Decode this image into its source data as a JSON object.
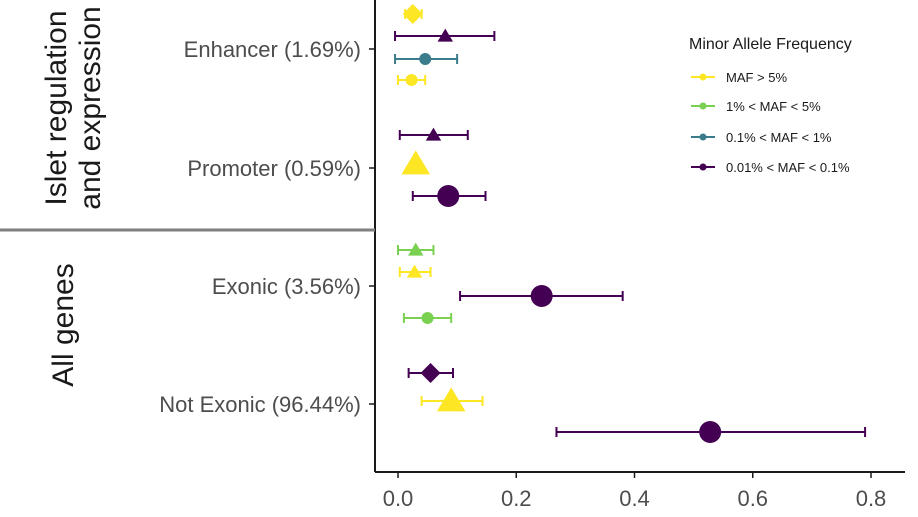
{
  "chart_data": {
    "type": "scatter",
    "subtype": "forest-plot",
    "xlim": [
      -0.04,
      0.83
    ],
    "x_ticks": [
      "0.0",
      "0.2",
      "0.4",
      "0.6",
      "0.8"
    ],
    "x_tick_values": [
      0.0,
      0.2,
      0.4,
      0.6,
      0.8
    ],
    "grid": false,
    "legend": {
      "title": "Minor Allele Frequency",
      "placement": "right",
      "items": [
        {
          "label": "MAF > 5%",
          "color": "#fde725"
        },
        {
          "label": "1% < MAF < 5%",
          "color": "#7ad151"
        },
        {
          "label": "0.1% < MAF < 1%",
          "color": "#3b7c8c"
        },
        {
          "label": "0.01% < MAF < 0.1%",
          "color": "#440154"
        }
      ]
    },
    "groups": [
      {
        "label": "Islet regulation and expression",
        "label_lines": [
          "Islet regulation",
          "and expression"
        ],
        "categories": [
          "Enhancer (1.69%)",
          "Promoter (0.59%)"
        ]
      },
      {
        "label": "All genes",
        "label_lines": [
          "All genes"
        ],
        "categories": [
          "Exonic (3.56%)",
          "Not Exonic (96.44%)"
        ]
      }
    ],
    "categories": [
      "Enhancer (1.69%)",
      "Promoter (0.59%)",
      "Exonic (3.56%)",
      "Not Exonic (96.44%)"
    ],
    "points": [
      {
        "category": "Enhancer (1.69%)",
        "maf": "MAF > 5%",
        "shape": "diamond",
        "size": "medium",
        "x": 0.025,
        "lo": 0.012,
        "hi": 0.04
      },
      {
        "category": "Enhancer (1.69%)",
        "maf": "0.01% < MAF < 0.1%",
        "shape": "triangle",
        "size": "small",
        "x": 0.08,
        "lo": -0.005,
        "hi": 0.163
      },
      {
        "category": "Enhancer (1.69%)",
        "maf": "0.1% < MAF < 1%",
        "shape": "circle",
        "size": "small",
        "x": 0.046,
        "lo": -0.005,
        "hi": 0.1
      },
      {
        "category": "Enhancer (1.69%)",
        "maf": "MAF > 5%",
        "shape": "circle",
        "size": "small",
        "x": 0.023,
        "lo": 0.0,
        "hi": 0.046
      },
      {
        "category": "Promoter (0.59%)",
        "maf": "0.01% < MAF < 0.1%",
        "shape": "triangle",
        "size": "small",
        "x": 0.06,
        "lo": 0.003,
        "hi": 0.118
      },
      {
        "category": "Promoter (0.59%)",
        "maf": "MAF > 5%",
        "shape": "triangle",
        "size": "large",
        "x": 0.03,
        "lo": 0.03,
        "hi": 0.03
      },
      {
        "category": "Promoter (0.59%)",
        "maf": "0.01% < MAF < 0.1%",
        "shape": "circle",
        "size": "large",
        "x": 0.085,
        "lo": 0.025,
        "hi": 0.148
      },
      {
        "category": "Exonic (3.56%)",
        "maf": "1% < MAF < 5%",
        "shape": "triangle",
        "size": "small",
        "x": 0.03,
        "lo": 0.0,
        "hi": 0.06
      },
      {
        "category": "Exonic (3.56%)",
        "maf": "MAF > 5%",
        "shape": "triangle",
        "size": "small",
        "x": 0.028,
        "lo": 0.003,
        "hi": 0.055
      },
      {
        "category": "Exonic (3.56%)",
        "maf": "0.01% < MAF < 0.1%",
        "shape": "circle",
        "size": "large",
        "x": 0.243,
        "lo": 0.105,
        "hi": 0.38
      },
      {
        "category": "Exonic (3.56%)",
        "maf": "1% < MAF < 5%",
        "shape": "circle",
        "size": "small",
        "x": 0.05,
        "lo": 0.01,
        "hi": 0.09
      },
      {
        "category": "Not Exonic (96.44%)",
        "maf": "0.01% < MAF < 0.1%",
        "shape": "diamond",
        "size": "medium",
        "x": 0.055,
        "lo": 0.018,
        "hi": 0.093
      },
      {
        "category": "Not Exonic (96.44%)",
        "maf": "MAF > 5%",
        "shape": "triangle",
        "size": "large",
        "x": 0.09,
        "lo": 0.04,
        "hi": 0.143
      },
      {
        "category": "Not Exonic (96.44%)",
        "maf": "0.01% < MAF < 0.1%",
        "shape": "circle",
        "size": "large",
        "x": 0.528,
        "lo": 0.268,
        "hi": 0.79
      }
    ]
  }
}
